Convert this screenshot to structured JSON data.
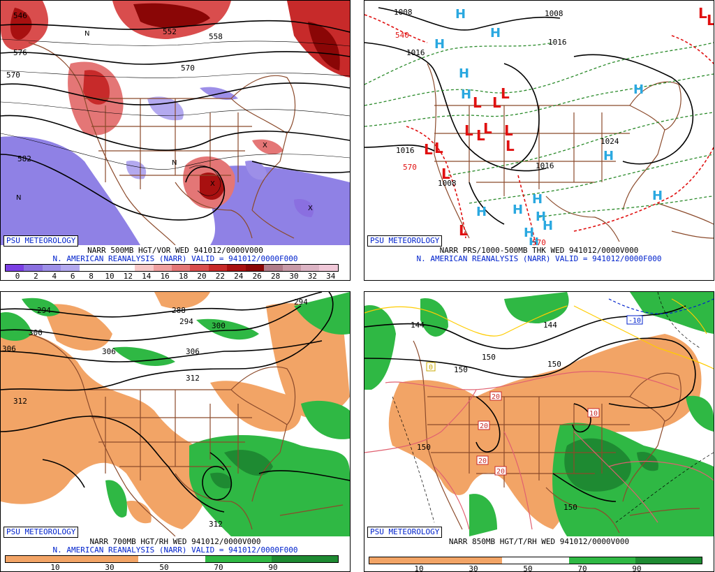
{
  "branding": "PSU METEOROLOGY",
  "panels": {
    "tl": {
      "title": "NARR 500MB HGT/VOR WED 941012/0000V000",
      "subtitle": "N. AMERICAN REANALYSIS (NARR) VALID = 941012/0000F000",
      "ticks": [
        "0",
        "2",
        "4",
        "6",
        "8",
        "10",
        "12",
        "14",
        "16",
        "18",
        "20",
        "22",
        "24",
        "26",
        "28",
        "30",
        "32",
        "34"
      ],
      "colors": [
        "#7b3fe4",
        "#8a6fe0",
        "#9d8fe8",
        "#b3a9ef",
        "#ffffff",
        "#ffffff",
        "#ffffff",
        "#f7c9c9",
        "#ef9f9f",
        "#e47676",
        "#d94d4d",
        "#c72a2a",
        "#a81010",
        "#8a0606",
        "#b07c8a",
        "#c89aa8",
        "#dcb4c4",
        "#f0c8d8"
      ],
      "labels": [
        "546",
        "552",
        "570",
        "576",
        "558",
        "582",
        "570"
      ]
    },
    "tr": {
      "title": "NARR PRS/1000-500MB THK WED 941012/0000V000",
      "subtitle": "N. AMERICAN REANALYSIS (NARR) VALID = 941012/0000F000",
      "labels": [
        "1008",
        "1008",
        "1016",
        "1016",
        "1016",
        "1024",
        "1008",
        "1016",
        "540",
        "570",
        "570"
      ]
    },
    "bl": {
      "title": "NARR 700MB HGT/RH WED 941012/0000V000",
      "subtitle": "N. AMERICAN REANALYSIS (NARR) VALID = 941012/0000F000",
      "ticks": [
        "10",
        "30",
        "50",
        "70",
        "90"
      ],
      "labels": [
        "294",
        "300",
        "306",
        "312",
        "288",
        "294",
        "300",
        "306",
        "312",
        "294",
        "312"
      ]
    },
    "br": {
      "title": "NARR 850MB HGT/T/RH WED 941012/0000V000",
      "ticks": [
        "10",
        "30",
        "50",
        "70",
        "90"
      ],
      "labels": [
        "144",
        "150",
        "150",
        "150",
        "144",
        "150",
        "20",
        "20",
        "20",
        "20",
        "10",
        "-10",
        "0",
        "150"
      ]
    }
  },
  "colors": {
    "rh_dry": "#f2a466",
    "rh_moist": "#2fb844",
    "rh_moist_dark": "#1e8a32",
    "map_lines": "#8b4a2b",
    "contour": "#000000",
    "H_color": "#2aa8e0",
    "L_color": "#e01010",
    "caption_blue": "#0022cc"
  }
}
